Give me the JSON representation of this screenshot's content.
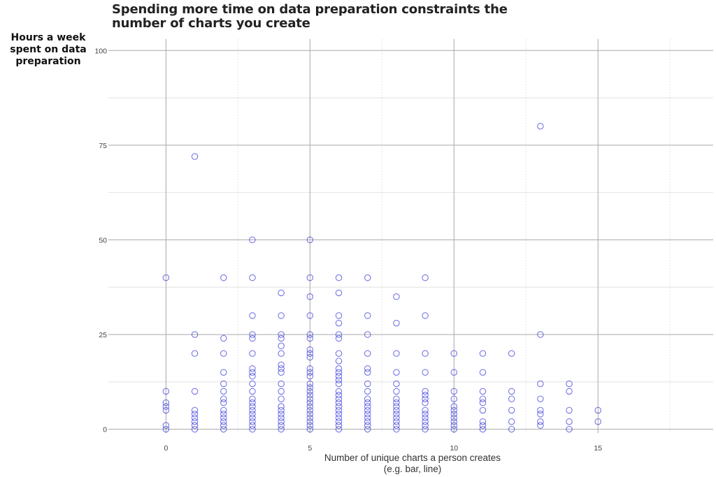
{
  "chart_data": {
    "type": "scatter",
    "title": "Spending more time on data preparation constraints the number of charts you create",
    "ylabel": "Hours a week spent on data preparation",
    "xlabel_line1": "Number of unique charts a person creates",
    "xlabel_line2": "(e.g. bar, line)",
    "xlim": [
      -2,
      19
    ],
    "ylim": [
      -1,
      103
    ],
    "xticks": [
      0,
      5,
      10,
      15
    ],
    "yticks": [
      0,
      25,
      50,
      75,
      100
    ],
    "grid": true,
    "marker_color": "#2d2dd8",
    "points": [
      [
        0,
        0
      ],
      [
        0,
        1
      ],
      [
        0,
        5
      ],
      [
        0,
        6
      ],
      [
        0,
        7
      ],
      [
        0,
        10
      ],
      [
        0,
        40
      ],
      [
        1,
        0
      ],
      [
        1,
        1
      ],
      [
        1,
        2
      ],
      [
        1,
        3
      ],
      [
        1,
        4
      ],
      [
        1,
        5
      ],
      [
        1,
        10
      ],
      [
        1,
        20
      ],
      [
        1,
        25
      ],
      [
        1,
        72
      ],
      [
        2,
        0
      ],
      [
        2,
        1
      ],
      [
        2,
        2
      ],
      [
        2,
        3
      ],
      [
        2,
        4
      ],
      [
        2,
        5
      ],
      [
        2,
        7
      ],
      [
        2,
        8
      ],
      [
        2,
        10
      ],
      [
        2,
        12
      ],
      [
        2,
        15
      ],
      [
        2,
        20
      ],
      [
        2,
        24
      ],
      [
        2,
        40
      ],
      [
        3,
        0
      ],
      [
        3,
        1
      ],
      [
        3,
        2
      ],
      [
        3,
        3
      ],
      [
        3,
        4
      ],
      [
        3,
        5
      ],
      [
        3,
        6
      ],
      [
        3,
        7
      ],
      [
        3,
        8
      ],
      [
        3,
        10
      ],
      [
        3,
        12
      ],
      [
        3,
        14
      ],
      [
        3,
        15
      ],
      [
        3,
        16
      ],
      [
        3,
        20
      ],
      [
        3,
        24
      ],
      [
        3,
        25
      ],
      [
        3,
        30
      ],
      [
        3,
        40
      ],
      [
        3,
        50
      ],
      [
        4,
        0
      ],
      [
        4,
        1
      ],
      [
        4,
        2
      ],
      [
        4,
        3
      ],
      [
        4,
        4
      ],
      [
        4,
        5
      ],
      [
        4,
        6
      ],
      [
        4,
        8
      ],
      [
        4,
        10
      ],
      [
        4,
        12
      ],
      [
        4,
        15
      ],
      [
        4,
        16
      ],
      [
        4,
        17
      ],
      [
        4,
        20
      ],
      [
        4,
        22
      ],
      [
        4,
        24
      ],
      [
        4,
        25
      ],
      [
        4,
        30
      ],
      [
        4,
        36
      ],
      [
        5,
        0
      ],
      [
        5,
        1
      ],
      [
        5,
        2
      ],
      [
        5,
        3
      ],
      [
        5,
        4
      ],
      [
        5,
        5
      ],
      [
        5,
        6
      ],
      [
        5,
        7
      ],
      [
        5,
        8
      ],
      [
        5,
        9
      ],
      [
        5,
        10
      ],
      [
        5,
        11
      ],
      [
        5,
        12
      ],
      [
        5,
        14
      ],
      [
        5,
        15
      ],
      [
        5,
        16
      ],
      [
        5,
        19
      ],
      [
        5,
        20
      ],
      [
        5,
        21
      ],
      [
        5,
        24
      ],
      [
        5,
        25
      ],
      [
        5,
        30
      ],
      [
        5,
        35
      ],
      [
        5,
        40
      ],
      [
        5,
        50
      ],
      [
        6,
        0
      ],
      [
        6,
        1
      ],
      [
        6,
        2
      ],
      [
        6,
        3
      ],
      [
        6,
        4
      ],
      [
        6,
        5
      ],
      [
        6,
        6
      ],
      [
        6,
        7
      ],
      [
        6,
        8
      ],
      [
        6,
        9
      ],
      [
        6,
        10
      ],
      [
        6,
        12
      ],
      [
        6,
        13
      ],
      [
        6,
        14
      ],
      [
        6,
        15
      ],
      [
        6,
        16
      ],
      [
        6,
        18
      ],
      [
        6,
        20
      ],
      [
        6,
        24
      ],
      [
        6,
        25
      ],
      [
        6,
        28
      ],
      [
        6,
        30
      ],
      [
        6,
        36
      ],
      [
        6,
        40
      ],
      [
        7,
        0
      ],
      [
        7,
        1
      ],
      [
        7,
        2
      ],
      [
        7,
        3
      ],
      [
        7,
        4
      ],
      [
        7,
        5
      ],
      [
        7,
        6
      ],
      [
        7,
        7
      ],
      [
        7,
        8
      ],
      [
        7,
        10
      ],
      [
        7,
        12
      ],
      [
        7,
        15
      ],
      [
        7,
        16
      ],
      [
        7,
        20
      ],
      [
        7,
        25
      ],
      [
        7,
        30
      ],
      [
        7,
        40
      ],
      [
        8,
        0
      ],
      [
        8,
        1
      ],
      [
        8,
        2
      ],
      [
        8,
        3
      ],
      [
        8,
        4
      ],
      [
        8,
        5
      ],
      [
        8,
        6
      ],
      [
        8,
        7
      ],
      [
        8,
        8
      ],
      [
        8,
        10
      ],
      [
        8,
        12
      ],
      [
        8,
        15
      ],
      [
        8,
        20
      ],
      [
        8,
        28
      ],
      [
        8,
        35
      ],
      [
        9,
        0
      ],
      [
        9,
        1
      ],
      [
        9,
        2
      ],
      [
        9,
        3
      ],
      [
        9,
        4
      ],
      [
        9,
        5
      ],
      [
        9,
        7
      ],
      [
        9,
        8
      ],
      [
        9,
        9
      ],
      [
        9,
        10
      ],
      [
        9,
        15
      ],
      [
        9,
        20
      ],
      [
        9,
        30
      ],
      [
        9,
        40
      ],
      [
        10,
        0
      ],
      [
        10,
        1
      ],
      [
        10,
        2
      ],
      [
        10,
        3
      ],
      [
        10,
        4
      ],
      [
        10,
        5
      ],
      [
        10,
        6
      ],
      [
        10,
        8
      ],
      [
        10,
        10
      ],
      [
        10,
        15
      ],
      [
        10,
        20
      ],
      [
        11,
        0
      ],
      [
        11,
        1
      ],
      [
        11,
        2
      ],
      [
        11,
        5
      ],
      [
        11,
        7
      ],
      [
        11,
        8
      ],
      [
        11,
        10
      ],
      [
        11,
        15
      ],
      [
        11,
        20
      ],
      [
        12,
        0
      ],
      [
        12,
        2
      ],
      [
        12,
        5
      ],
      [
        12,
        8
      ],
      [
        12,
        10
      ],
      [
        12,
        20
      ],
      [
        13,
        1
      ],
      [
        13,
        2
      ],
      [
        13,
        4
      ],
      [
        13,
        5
      ],
      [
        13,
        8
      ],
      [
        13,
        12
      ],
      [
        13,
        25
      ],
      [
        13,
        80
      ],
      [
        14,
        0
      ],
      [
        14,
        2
      ],
      [
        14,
        5
      ],
      [
        14,
        10
      ],
      [
        14,
        12
      ],
      [
        15,
        2
      ],
      [
        15,
        5
      ]
    ]
  }
}
